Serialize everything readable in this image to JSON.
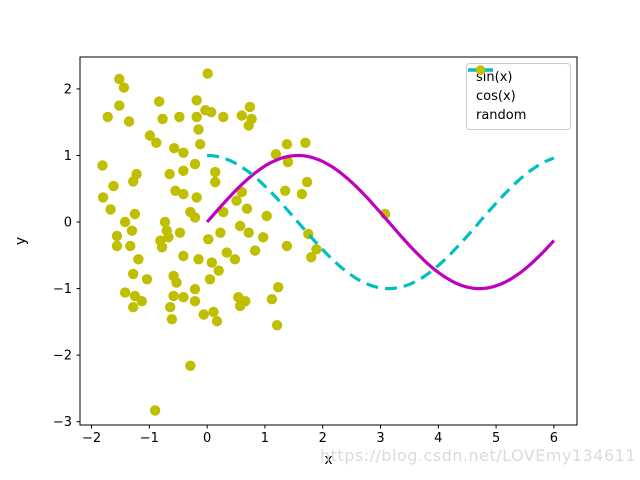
{
  "watermark": "https://blog.csdn.net/LOVEmy134611",
  "chart_data": {
    "type": "line+scatter",
    "title": "",
    "xlabel": "x",
    "ylabel": "y",
    "xlim": [
      -2.2,
      6.4
    ],
    "ylim": [
      -3.05,
      2.48
    ],
    "grid": false,
    "xticks": {
      "values": [
        -2,
        -1,
        0,
        1,
        2,
        3,
        4,
        5,
        6
      ],
      "labels": [
        "−2",
        "−1",
        "0",
        "1",
        "2",
        "3",
        "4",
        "5",
        "6"
      ]
    },
    "yticks": {
      "values": [
        -3,
        -2,
        -1,
        0,
        1,
        2
      ],
      "labels": [
        "−3",
        "−2",
        "−1",
        "0",
        "1",
        "2"
      ]
    },
    "legend": {
      "position": "upper right",
      "entries": [
        {
          "label": "sin(x)",
          "color": "#bf00bf",
          "style": "solid-line"
        },
        {
          "label": "cos(x)",
          "color": "#00bfbf",
          "style": "dashed-line"
        },
        {
          "label": "random",
          "color": "#bfbf00",
          "style": "dot-marker"
        }
      ]
    },
    "series": [
      {
        "name": "sin(x)",
        "type": "line",
        "fn": "sin",
        "x_range": [
          0,
          6
        ],
        "color": "#bf00bf",
        "linestyle": "solid",
        "linewidth": 3.2
      },
      {
        "name": "cos(x)",
        "type": "line",
        "fn": "cos",
        "x_range": [
          0,
          6
        ],
        "color": "#00bfbf",
        "linestyle": "dashed",
        "linewidth": 3.2
      },
      {
        "name": "random",
        "type": "scatter",
        "color": "#bfbf00",
        "marker_radius": 5.2,
        "points": [
          [
            -1.52,
            2.15
          ],
          [
            -1.44,
            2.02
          ],
          [
            -1.52,
            1.75
          ],
          [
            -1.72,
            1.58
          ],
          [
            -1.35,
            1.51
          ],
          [
            -0.83,
            1.81
          ],
          [
            -0.77,
            1.55
          ],
          [
            -0.48,
            1.58
          ],
          [
            -0.18,
            1.83
          ],
          [
            -0.18,
            1.58
          ],
          [
            -0.15,
            1.39
          ],
          [
            -0.99,
            1.3
          ],
          [
            -0.88,
            1.19
          ],
          [
            -0.57,
            1.11
          ],
          [
            -0.41,
            1.04
          ],
          [
            -0.12,
            1.17
          ],
          [
            -1.81,
            0.85
          ],
          [
            -1.22,
            0.72
          ],
          [
            -0.65,
            0.72
          ],
          [
            -0.41,
            0.77
          ],
          [
            -0.21,
            0.87
          ],
          [
            0.01,
            2.23
          ],
          [
            -0.03,
            1.68
          ],
          [
            0.07,
            1.65
          ],
          [
            0.28,
            1.58
          ],
          [
            0.74,
            1.73
          ],
          [
            0.6,
            1.6
          ],
          [
            0.77,
            1.55
          ],
          [
            0.72,
            1.45
          ],
          [
            1.38,
            1.17
          ],
          [
            1.7,
            1.19
          ],
          [
            1.19,
            1.02
          ],
          [
            1.4,
            0.9
          ],
          [
            0.14,
            0.75
          ],
          [
            -1.62,
            0.54
          ],
          [
            -1.28,
            0.61
          ],
          [
            -1.8,
            0.37
          ],
          [
            -1.67,
            0.19
          ],
          [
            -0.55,
            0.47
          ],
          [
            -0.41,
            0.42
          ],
          [
            -0.18,
            0.37
          ],
          [
            -0.29,
            0.15
          ],
          [
            -0.21,
            0.07
          ],
          [
            -1.25,
            0.12
          ],
          [
            -1.42,
            0.0
          ],
          [
            -1.3,
            -0.13
          ],
          [
            -1.56,
            -0.21
          ],
          [
            -1.56,
            -0.36
          ],
          [
            -1.33,
            -0.36
          ],
          [
            -0.73,
            0.0
          ],
          [
            -0.7,
            -0.13
          ],
          [
            -0.81,
            -0.28
          ],
          [
            -0.78,
            -0.38
          ],
          [
            -0.67,
            -0.23
          ],
          [
            -0.47,
            -0.16
          ],
          [
            -1.19,
            -0.56
          ],
          [
            -1.28,
            -0.78
          ],
          [
            -1.04,
            -0.86
          ],
          [
            -0.41,
            -0.51
          ],
          [
            -0.15,
            -0.56
          ],
          [
            -0.58,
            -0.81
          ],
          [
            -0.53,
            -0.91
          ],
          [
            -1.42,
            -1.06
          ],
          [
            -1.25,
            -1.11
          ],
          [
            -1.13,
            -1.19
          ],
          [
            -0.58,
            -1.11
          ],
          [
            -0.41,
            -1.13
          ],
          [
            -0.21,
            -1.01
          ],
          [
            -0.21,
            -1.19
          ],
          [
            0.14,
            0.6
          ],
          [
            0.6,
            0.45
          ],
          [
            0.51,
            0.32
          ],
          [
            0.69,
            0.2
          ],
          [
            0.28,
            0.15
          ],
          [
            1.35,
            0.47
          ],
          [
            1.64,
            0.42
          ],
          [
            1.73,
            0.6
          ],
          [
            1.03,
            0.09
          ],
          [
            0.57,
            -0.06
          ],
          [
            0.72,
            -0.16
          ],
          [
            0.23,
            -0.16
          ],
          [
            0.02,
            -0.26
          ],
          [
            0.97,
            -0.23
          ],
          [
            0.83,
            -0.43
          ],
          [
            1.38,
            -0.36
          ],
          [
            0.34,
            -0.46
          ],
          [
            0.48,
            -0.56
          ],
          [
            0.08,
            -0.61
          ],
          [
            0.2,
            -0.73
          ],
          [
            0.05,
            -0.86
          ],
          [
            1.75,
            -0.18
          ],
          [
            1.89,
            -0.41
          ],
          [
            1.8,
            -0.53
          ],
          [
            1.23,
            -0.98
          ],
          [
            0.54,
            -1.13
          ],
          [
            0.66,
            -1.19
          ],
          [
            1.12,
            -1.16
          ],
          [
            -1.28,
            -1.28
          ],
          [
            -0.64,
            -1.28
          ],
          [
            -0.61,
            -1.46
          ],
          [
            -0.29,
            -2.16
          ],
          [
            -0.9,
            -2.83
          ],
          [
            -0.06,
            -1.39
          ],
          [
            0.17,
            -1.49
          ],
          [
            0.11,
            -1.35
          ],
          [
            0.57,
            -1.26
          ],
          [
            1.21,
            -1.55
          ],
          [
            3.08,
            0.12
          ]
        ]
      }
    ]
  }
}
